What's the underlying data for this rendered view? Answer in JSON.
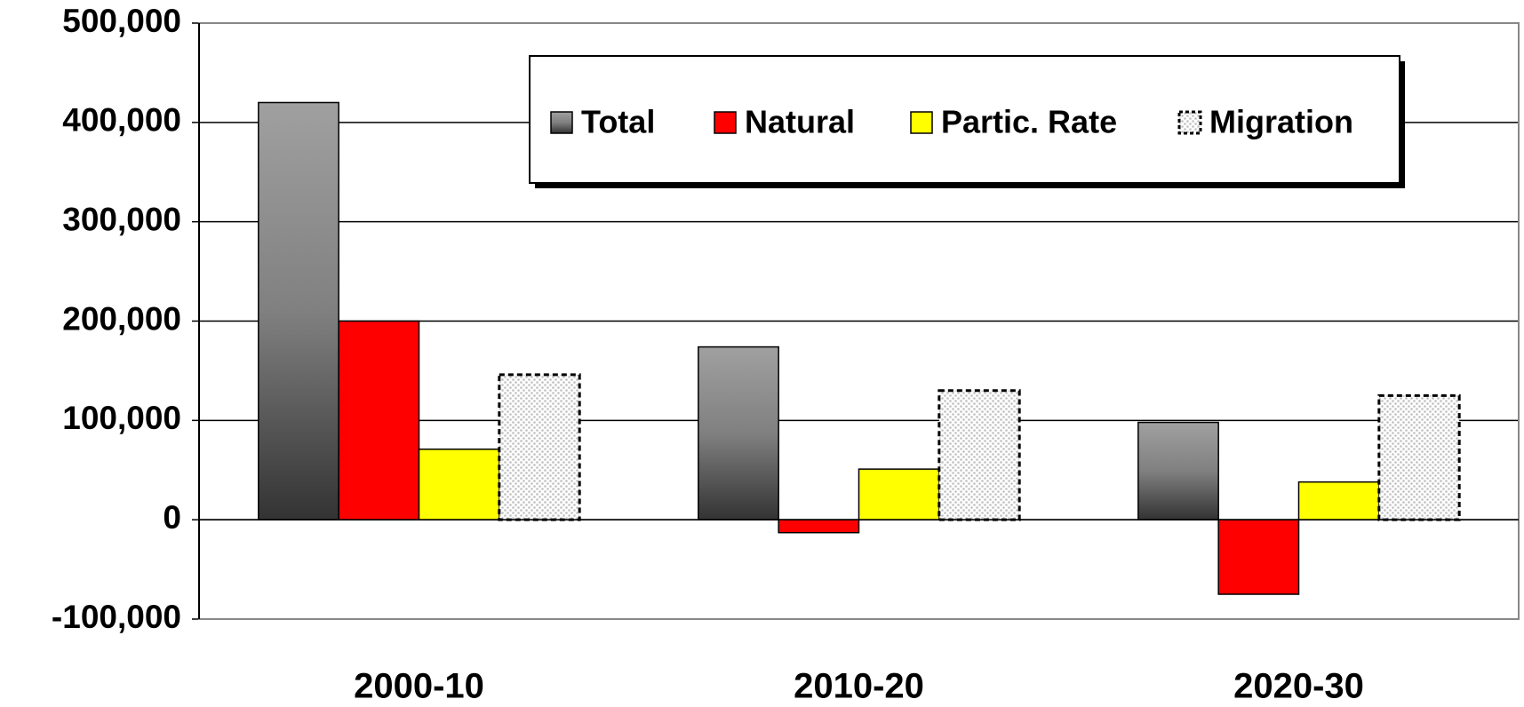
{
  "chart_data": {
    "type": "bar",
    "categories": [
      "2000-10",
      "2010-20",
      "2020-30"
    ],
    "series": [
      {
        "name": "Total",
        "color": "#808080",
        "values": [
          420000,
          174000,
          98000
        ]
      },
      {
        "name": "Natural",
        "color": "#ff0000",
        "values": [
          200000,
          -13000,
          -75000
        ]
      },
      {
        "name": "Partic. Rate",
        "color": "#ffff00",
        "values": [
          71000,
          51000,
          38000
        ]
      },
      {
        "name": "Migration",
        "color": "#c0c0c0",
        "values": [
          146000,
          130000,
          125000
        ]
      }
    ],
    "ylim": [
      -100000,
      500000
    ],
    "yticks": [
      {
        "value": 500000,
        "label": "500,000"
      },
      {
        "value": 400000,
        "label": "400,000"
      },
      {
        "value": 300000,
        "label": "300,000"
      },
      {
        "value": 200000,
        "label": "200,000"
      },
      {
        "value": 100000,
        "label": "100,000"
      },
      0,
      {
        "value": -100000,
        "label": "-100,000"
      }
    ],
    "grid": true,
    "legend": "top"
  }
}
